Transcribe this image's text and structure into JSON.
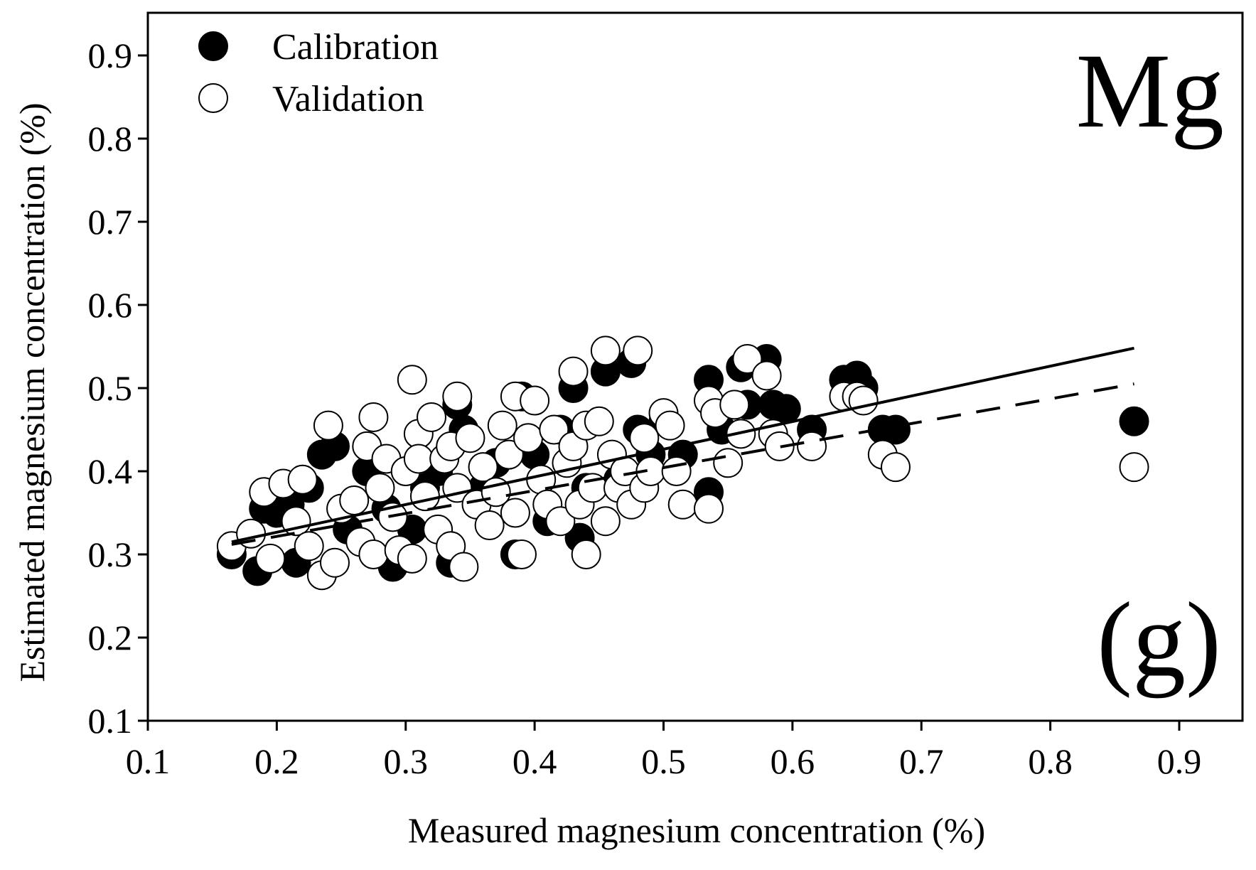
{
  "chart_data": {
    "type": "scatter",
    "xlabel": "Measured magnesium concentration (%)",
    "ylabel": "Estimated magnesium concentration (%)",
    "xlim": [
      0.1,
      0.95
    ],
    "ylim": [
      0.1,
      0.95
    ],
    "xticks": [
      "0.1",
      "0.2",
      "0.3",
      "0.4",
      "0.5",
      "0.6",
      "0.7",
      "0.8",
      "0.9"
    ],
    "yticks": [
      "0.1",
      "0.2",
      "0.3",
      "0.4",
      "0.5",
      "0.6",
      "0.7",
      "0.8",
      "0.9"
    ],
    "xtick_values": [
      0.1,
      0.2,
      0.3,
      0.4,
      0.5,
      0.6,
      0.7,
      0.8,
      0.9
    ],
    "ytick_values": [
      0.1,
      0.2,
      0.3,
      0.4,
      0.5,
      0.6,
      0.7,
      0.8,
      0.9
    ],
    "element_label": "Mg",
    "panel_label": "(g)",
    "legend": {
      "placement": "top-left",
      "entries": [
        "Calibration",
        "Validation"
      ]
    },
    "colors": {
      "calibration_fill": "#000000",
      "validation_fill": "#ffffff",
      "stroke": "#000000"
    },
    "series": [
      {
        "name": "Calibration",
        "marker": "filled-circle",
        "fit_line": {
          "style": "dashed",
          "x": [
            0.165,
            0.865
          ],
          "y": [
            0.312,
            0.505
          ]
        },
        "points": [
          [
            0.165,
            0.3
          ],
          [
            0.185,
            0.28
          ],
          [
            0.19,
            0.355
          ],
          [
            0.2,
            0.35
          ],
          [
            0.21,
            0.36
          ],
          [
            0.215,
            0.29
          ],
          [
            0.225,
            0.38
          ],
          [
            0.235,
            0.42
          ],
          [
            0.245,
            0.43
          ],
          [
            0.255,
            0.33
          ],
          [
            0.27,
            0.4
          ],
          [
            0.285,
            0.355
          ],
          [
            0.29,
            0.285
          ],
          [
            0.3,
            0.4
          ],
          [
            0.305,
            0.33
          ],
          [
            0.315,
            0.38
          ],
          [
            0.325,
            0.4
          ],
          [
            0.335,
            0.29
          ],
          [
            0.34,
            0.48
          ],
          [
            0.345,
            0.45
          ],
          [
            0.36,
            0.38
          ],
          [
            0.37,
            0.41
          ],
          [
            0.385,
            0.3
          ],
          [
            0.39,
            0.49
          ],
          [
            0.4,
            0.42
          ],
          [
            0.41,
            0.34
          ],
          [
            0.42,
            0.45
          ],
          [
            0.43,
            0.5
          ],
          [
            0.435,
            0.32
          ],
          [
            0.44,
            0.38
          ],
          [
            0.455,
            0.52
          ],
          [
            0.465,
            0.39
          ],
          [
            0.475,
            0.53
          ],
          [
            0.48,
            0.45
          ],
          [
            0.49,
            0.42
          ],
          [
            0.5,
            0.46
          ],
          [
            0.515,
            0.42
          ],
          [
            0.535,
            0.51
          ],
          [
            0.535,
            0.375
          ],
          [
            0.545,
            0.45
          ],
          [
            0.56,
            0.525
          ],
          [
            0.565,
            0.48
          ],
          [
            0.58,
            0.535
          ],
          [
            0.585,
            0.48
          ],
          [
            0.595,
            0.475
          ],
          [
            0.615,
            0.45
          ],
          [
            0.64,
            0.51
          ],
          [
            0.65,
            0.515
          ],
          [
            0.655,
            0.5
          ],
          [
            0.67,
            0.45
          ],
          [
            0.68,
            0.45
          ],
          [
            0.865,
            0.46
          ]
        ]
      },
      {
        "name": "Validation",
        "marker": "open-circle",
        "fit_line": {
          "style": "solid",
          "x": [
            0.165,
            0.865
          ],
          "y": [
            0.315,
            0.548
          ]
        },
        "points": [
          [
            0.165,
            0.31
          ],
          [
            0.18,
            0.325
          ],
          [
            0.19,
            0.375
          ],
          [
            0.195,
            0.295
          ],
          [
            0.205,
            0.385
          ],
          [
            0.215,
            0.34
          ],
          [
            0.22,
            0.39
          ],
          [
            0.225,
            0.31
          ],
          [
            0.235,
            0.275
          ],
          [
            0.24,
            0.455
          ],
          [
            0.245,
            0.29
          ],
          [
            0.25,
            0.355
          ],
          [
            0.26,
            0.365
          ],
          [
            0.265,
            0.315
          ],
          [
            0.27,
            0.43
          ],
          [
            0.275,
            0.465
          ],
          [
            0.275,
            0.3
          ],
          [
            0.28,
            0.38
          ],
          [
            0.285,
            0.415
          ],
          [
            0.29,
            0.345
          ],
          [
            0.295,
            0.305
          ],
          [
            0.3,
            0.4
          ],
          [
            0.305,
            0.51
          ],
          [
            0.305,
            0.295
          ],
          [
            0.31,
            0.445
          ],
          [
            0.31,
            0.415
          ],
          [
            0.315,
            0.37
          ],
          [
            0.32,
            0.465
          ],
          [
            0.325,
            0.33
          ],
          [
            0.33,
            0.415
          ],
          [
            0.335,
            0.31
          ],
          [
            0.335,
            0.43
          ],
          [
            0.34,
            0.38
          ],
          [
            0.34,
            0.49
          ],
          [
            0.345,
            0.285
          ],
          [
            0.35,
            0.44
          ],
          [
            0.355,
            0.36
          ],
          [
            0.36,
            0.405
          ],
          [
            0.365,
            0.335
          ],
          [
            0.37,
            0.375
          ],
          [
            0.375,
            0.455
          ],
          [
            0.38,
            0.42
          ],
          [
            0.385,
            0.49
          ],
          [
            0.385,
            0.35
          ],
          [
            0.39,
            0.3
          ],
          [
            0.395,
            0.44
          ],
          [
            0.4,
            0.485
          ],
          [
            0.405,
            0.39
          ],
          [
            0.41,
            0.36
          ],
          [
            0.415,
            0.45
          ],
          [
            0.42,
            0.34
          ],
          [
            0.425,
            0.41
          ],
          [
            0.43,
            0.52
          ],
          [
            0.43,
            0.43
          ],
          [
            0.435,
            0.36
          ],
          [
            0.44,
            0.3
          ],
          [
            0.44,
            0.455
          ],
          [
            0.445,
            0.38
          ],
          [
            0.45,
            0.46
          ],
          [
            0.455,
            0.545
          ],
          [
            0.455,
            0.34
          ],
          [
            0.46,
            0.42
          ],
          [
            0.465,
            0.38
          ],
          [
            0.47,
            0.4
          ],
          [
            0.475,
            0.36
          ],
          [
            0.48,
            0.545
          ],
          [
            0.485,
            0.44
          ],
          [
            0.485,
            0.38
          ],
          [
            0.49,
            0.4
          ],
          [
            0.5,
            0.47
          ],
          [
            0.505,
            0.455
          ],
          [
            0.51,
            0.4
          ],
          [
            0.515,
            0.36
          ],
          [
            0.535,
            0.355
          ],
          [
            0.535,
            0.485
          ],
          [
            0.54,
            0.47
          ],
          [
            0.55,
            0.41
          ],
          [
            0.555,
            0.48
          ],
          [
            0.56,
            0.445
          ],
          [
            0.565,
            0.535
          ],
          [
            0.58,
            0.515
          ],
          [
            0.585,
            0.445
          ],
          [
            0.59,
            0.43
          ],
          [
            0.615,
            0.43
          ],
          [
            0.64,
            0.49
          ],
          [
            0.65,
            0.49
          ],
          [
            0.655,
            0.485
          ],
          [
            0.67,
            0.42
          ],
          [
            0.68,
            0.405
          ],
          [
            0.865,
            0.405
          ]
        ]
      }
    ]
  }
}
